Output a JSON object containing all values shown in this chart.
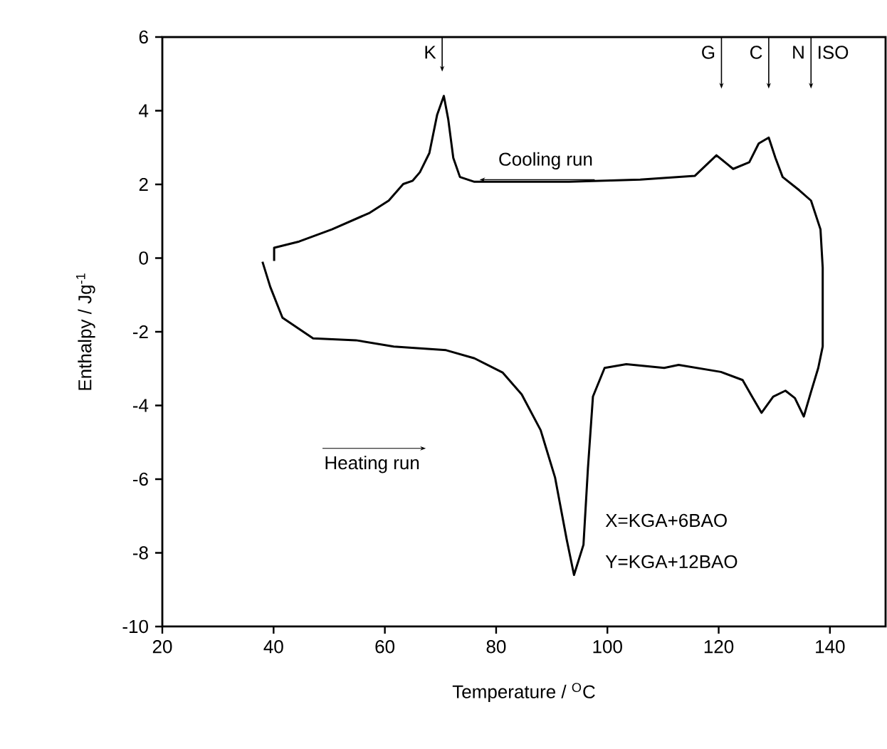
{
  "chart_data": {
    "type": "line",
    "xlabel": "Temperature / $^{O}$C",
    "ylabel": "Enthalpy / Jg$^{-1}$",
    "xlim": [
      20,
      150
    ],
    "ylim": [
      -10,
      6
    ],
    "xticks": [
      20,
      40,
      60,
      80,
      100,
      120,
      140
    ],
    "yticks": [
      -10,
      -8,
      -6,
      -4,
      -2,
      0,
      2,
      4,
      6
    ],
    "grid": false,
    "marker": "none",
    "line_style": "solid",
    "series": [
      {
        "color": "#000000",
        "x": [
          38.0,
          39.4,
          41.1,
          41.6,
          47.1,
          54.8,
          61.6,
          71.0,
          76.1,
          81.2,
          84.6,
          88.0,
          90.6,
          92.7,
          94.0,
          95.7,
          96.5,
          97.4,
          99.5,
          103.4,
          110.2,
          112.8,
          120.4,
          124.3,
          126.0,
          127.7,
          129.8,
          132.0,
          133.7,
          135.3,
          136.6,
          137.9,
          138.7,
          138.7,
          138.3,
          136.6,
          134.5,
          131.5,
          130.2,
          129.0,
          127.2,
          125.5,
          122.6,
          119.6,
          115.7,
          105.9,
          93.1,
          76.1,
          73.5,
          72.3,
          71.4,
          70.6,
          69.4,
          68.0,
          66.3,
          65.0,
          63.3,
          60.7,
          57.3,
          50.5,
          44.6,
          40.1,
          40.1
        ],
        "values": [
          -0.1,
          -0.78,
          -1.43,
          -1.62,
          -2.18,
          -2.23,
          -2.4,
          -2.5,
          -2.72,
          -3.11,
          -3.7,
          -4.67,
          -5.96,
          -7.65,
          -8.6,
          -7.78,
          -5.71,
          -3.76,
          -2.98,
          -2.88,
          -2.98,
          -2.9,
          -3.09,
          -3.31,
          -3.76,
          -4.2,
          -3.76,
          -3.6,
          -3.8,
          -4.3,
          -3.63,
          -2.98,
          -2.4,
          -0.26,
          0.78,
          1.56,
          1.84,
          2.2,
          2.72,
          3.27,
          3.11,
          2.6,
          2.42,
          2.79,
          2.23,
          2.13,
          2.07,
          2.07,
          2.2,
          2.72,
          3.76,
          4.4,
          3.89,
          2.85,
          2.33,
          2.1,
          2.01,
          1.56,
          1.23,
          0.78,
          0.45,
          0.28,
          -0.08
        ]
      }
    ],
    "annotations": [
      {
        "text": "K",
        "x": 70.3,
        "y": 5.06
      },
      {
        "text": "G",
        "x": 120.5,
        "y": 4.6
      },
      {
        "text": "C",
        "x": 129.0,
        "y": 4.6
      },
      {
        "text": "N",
        "x": 136.6,
        "y": 4.6
      },
      "ISO",
      "Cooling run",
      "Heating run",
      "X=KGA+6BAO",
      "Y=KGA+12BAO"
    ]
  }
}
